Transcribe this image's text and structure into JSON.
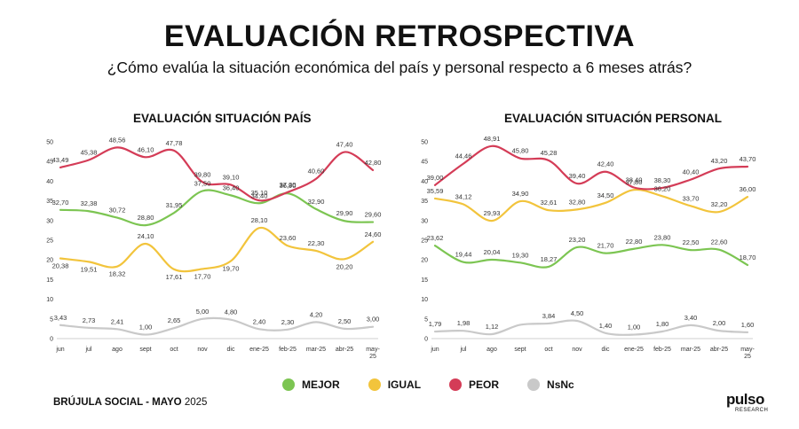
{
  "header": {
    "title": "EVALUACIÓN RETROSPECTIVA",
    "subtitle": "¿Cómo evalúa la situación económica del país y personal respecto a 6 meses atrás?"
  },
  "legend": [
    {
      "label": "MEJOR",
      "color": "#7cc552"
    },
    {
      "label": "IGUAL",
      "color": "#f2c43c"
    },
    {
      "label": "PEOR",
      "color": "#d43c57"
    },
    {
      "label": "NsNc",
      "color": "#c9c9c9"
    }
  ],
  "footer": {
    "prefix": "BRÚJULA SOCIAL - MAYO",
    "year": "2025"
  },
  "logo": {
    "word": "pulso",
    "sub": "RESEARCH"
  },
  "chart_data": [
    {
      "type": "line",
      "title": "EVALUACIÓN SITUACIÓN PAÍS",
      "categories": [
        "jun",
        "jul",
        "ago",
        "sept",
        "oct",
        "nov",
        "dic",
        "ene-25",
        "feb-25",
        "mar-25",
        "abr-25",
        "may-25"
      ],
      "ylim": [
        0,
        50
      ],
      "yticks": [
        0,
        5,
        10,
        15,
        20,
        25,
        30,
        35,
        40,
        45,
        50
      ],
      "series": [
        {
          "name": "MEJOR",
          "color": "#7cc552",
          "values": [
            32.7,
            32.38,
            30.72,
            28.8,
            31.95,
            37.5,
            36.4,
            34.4,
            36.9,
            32.9,
            29.9,
            29.6
          ],
          "labels": [
            "32,70",
            "32,38",
            "30,72",
            "28,80",
            "31,95",
            "37,50",
            "36,40",
            "34,40",
            "36,90",
            "32,90",
            "29,90",
            "29,60"
          ]
        },
        {
          "name": "IGUAL",
          "color": "#f2c43c",
          "values": [
            20.38,
            19.51,
            18.32,
            24.1,
            17.61,
            17.7,
            19.7,
            28.1,
            23.6,
            22.3,
            20.2,
            24.6
          ],
          "labels": [
            "20,38",
            "19,51",
            "18,32",
            "24,10",
            "17,61",
            "17,70",
            "19,70",
            "28,10",
            "23,60",
            "22,30",
            "20,20",
            "24,60"
          ]
        },
        {
          "name": "PEOR",
          "color": "#d43c57",
          "values": [
            43.49,
            45.38,
            48.56,
            46.1,
            47.78,
            39.8,
            39.1,
            35.1,
            37.2,
            40.6,
            47.4,
            42.8
          ],
          "labels": [
            "43,49",
            "45,38",
            "48,56",
            "46,10",
            "47,78",
            "39,80",
            "39,10",
            "35,10",
            "37,20",
            "40,60",
            "47,40",
            "42,80"
          ]
        },
        {
          "name": "NsNc",
          "color": "#c9c9c9",
          "values": [
            3.43,
            2.73,
            2.41,
            1.0,
            2.65,
            5.0,
            4.8,
            2.4,
            2.3,
            4.2,
            2.5,
            3.0
          ],
          "labels": [
            "3,43",
            "2,73",
            "2,41",
            "1,00",
            "2,65",
            "5,00",
            "4,80",
            "2,40",
            "2,30",
            "4,20",
            "2,50",
            "3,00"
          ]
        }
      ]
    },
    {
      "type": "line",
      "title": "EVALUACIÓN SITUACIÓN PERSONAL",
      "categories": [
        "jun",
        "jul",
        "ago",
        "sept",
        "oct",
        "nov",
        "dic",
        "ene-25",
        "feb-25",
        "mar-25",
        "abr-25",
        "may-25"
      ],
      "ylim": [
        0,
        50
      ],
      "yticks": [
        0,
        5,
        10,
        15,
        20,
        25,
        30,
        35,
        40,
        45,
        50
      ],
      "series": [
        {
          "name": "MEJOR",
          "color": "#7cc552",
          "values": [
            23.62,
            19.44,
            20.04,
            19.3,
            18.27,
            23.2,
            21.7,
            22.8,
            23.8,
            22.5,
            22.6,
            18.7
          ],
          "labels": [
            "23,62",
            "19,44",
            "20,04",
            "19,30",
            "18,27",
            "23,20",
            "21,70",
            "22,80",
            "23,80",
            "22,50",
            "22,60",
            "18,70"
          ]
        },
        {
          "name": "IGUAL",
          "color": "#f2c43c",
          "values": [
            35.59,
            34.12,
            29.93,
            34.9,
            32.61,
            32.8,
            34.5,
            37.8,
            36.2,
            33.7,
            32.2,
            36.0
          ],
          "labels": [
            "35,59",
            "34,12",
            "29,93",
            "34,90",
            "32,61",
            "32,80",
            "34,50",
            "37,80",
            "36,20",
            "33,70",
            "32,20",
            "36,00"
          ]
        },
        {
          "name": "PEOR",
          "color": "#d43c57",
          "values": [
            39.0,
            44.46,
            48.91,
            45.8,
            45.28,
            39.4,
            42.4,
            38.4,
            38.3,
            40.4,
            43.2,
            43.7
          ],
          "labels": [
            "39,00",
            "44,46",
            "48,91",
            "45,80",
            "45,28",
            "39,40",
            "42,40",
            "38,40",
            "38,30",
            "40,40",
            "43,20",
            "43,70"
          ]
        },
        {
          "name": "NsNc",
          "color": "#c9c9c9",
          "values": [
            1.79,
            1.98,
            1.12,
            3.5,
            3.84,
            4.5,
            1.4,
            1.0,
            1.8,
            3.4,
            2.0,
            1.6
          ],
          "labels": [
            "1,79",
            "1,98",
            "1,12",
            "",
            "3,84",
            "4,50",
            "1,40",
            "1,00",
            "1,80",
            "3,40",
            "2,00",
            "1,60"
          ]
        }
      ]
    }
  ]
}
